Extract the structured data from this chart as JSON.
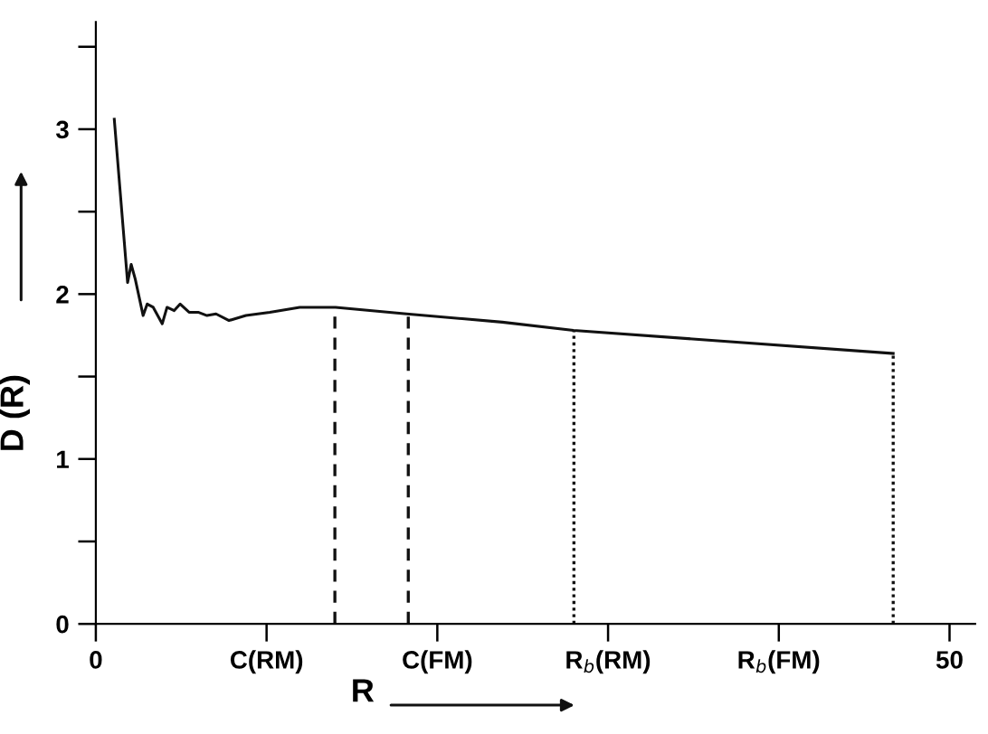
{
  "chart_data": {
    "type": "line",
    "xlabel": "R",
    "ylabel": "D (R)",
    "x": [
      1.08,
      1.86,
      2.07,
      2.31,
      2.77,
      3.01,
      3.36,
      3.89,
      4.17,
      4.59,
      4.94,
      5.46,
      5.99,
      6.51,
      7.04,
      7.8,
      8.79,
      10.19,
      11.94,
      14.04,
      18.2,
      23.8,
      27.98,
      46.7
    ],
    "series": [
      {
        "color": "#111111",
        "values": [
          3.06,
          2.07,
          2.18,
          2.09,
          1.87,
          1.94,
          1.92,
          1.82,
          1.92,
          1.9,
          1.94,
          1.89,
          1.89,
          1.87,
          1.88,
          1.84,
          1.87,
          1.89,
          1.92,
          1.92,
          1.88,
          1.83,
          1.78,
          1.64
        ]
      }
    ],
    "xlim": [
      0,
      51.5
    ],
    "ylim": [
      0,
      3.65
    ],
    "xticks": [
      0,
      {
        "value": 10,
        "label": "C(RM)"
      },
      {
        "value": 20,
        "label": "C(FM)"
      },
      {
        "value": 30,
        "label": "R$_{b}$(RM)"
      },
      {
        "value": 40,
        "label": "R$_{b}$(FM)"
      },
      50
    ],
    "yticks": [
      0,
      {
        "value": 0.5,
        "label": null
      },
      1,
      {
        "value": 1.5,
        "label": null
      },
      2,
      {
        "value": 2.5,
        "label": null
      },
      3,
      {
        "value": 3.5,
        "label": null
      }
    ],
    "ref_lines": [
      {
        "axis": "x",
        "value": 14.0,
        "line_style": "dashed"
      },
      {
        "axis": "x",
        "value": 18.3,
        "line_style": "dashed"
      },
      {
        "axis": "x",
        "value": 28.0,
        "line_style": "dotted"
      },
      {
        "axis": "x",
        "value": 46.7,
        "line_style": "dotted"
      }
    ],
    "grid": false,
    "legend": false,
    "marker": "none",
    "line_style": "solid"
  }
}
